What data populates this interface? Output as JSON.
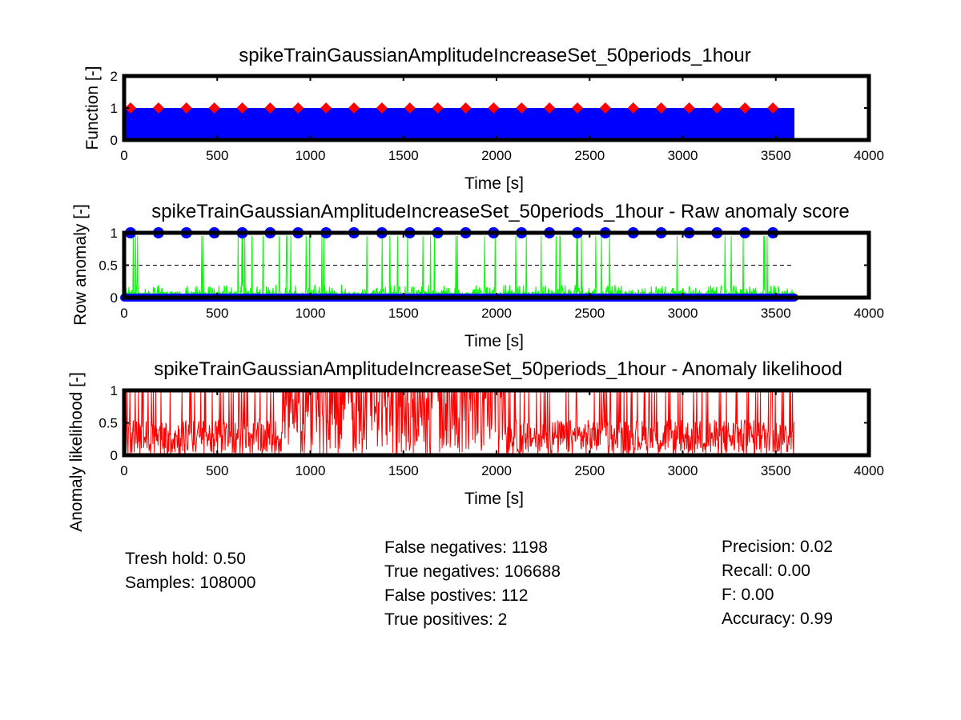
{
  "chart_data": [
    {
      "type": "bar",
      "title": "spikeTrainGaussianAmplitudeIncreaseSet_50periods_1hour",
      "xlabel": "Time [s]",
      "ylabel": "Function [-]",
      "xlim": [
        0,
        4000
      ],
      "ylim": [
        0,
        2
      ],
      "xticks": [
        "0",
        "500",
        "1000",
        "1500",
        "2000",
        "2500",
        "3000",
        "3500",
        "4000"
      ],
      "yticks": [
        "0",
        "1",
        "2"
      ],
      "series": [
        {
          "kind": "filled-area",
          "color": "#0000ff",
          "x": [
            0,
            3600
          ],
          "values": [
            1,
            1
          ]
        },
        {
          "kind": "markers",
          "marker": "diamond",
          "color": "#ff0000",
          "x": [
            0,
            150,
            300,
            450,
            600,
            750,
            900,
            1050,
            1200,
            1350,
            1500,
            1650,
            1800,
            1950,
            2100,
            2250,
            2400,
            2550,
            2700,
            2850,
            3000,
            3150,
            3300,
            3450
          ],
          "values": [
            1,
            1,
            1,
            1,
            1,
            1,
            1,
            1,
            1,
            1,
            1,
            1,
            1,
            1,
            1,
            1,
            1,
            1,
            1,
            1,
            1,
            1,
            1,
            1
          ]
        }
      ]
    },
    {
      "type": "line",
      "title": "spikeTrainGaussianAmplitudeIncreaseSet_50periods_1hour - Raw anomaly score",
      "xlabel": "Time [s]",
      "ylabel": "Row anomaly [-]",
      "xlim": [
        0,
        4000
      ],
      "ylim": [
        0,
        1
      ],
      "xticks": [
        "0",
        "500",
        "1000",
        "1500",
        "2000",
        "2500",
        "3000",
        "3500",
        "4000"
      ],
      "yticks": [
        "0",
        "0.5",
        "1"
      ],
      "threshold": 0.5,
      "series": [
        {
          "kind": "noisy-line",
          "color": "#00ff00",
          "x_range": [
            0,
            3600
          ],
          "baseline_max": 0.2,
          "spike_value": 0.95
        },
        {
          "kind": "markers",
          "marker": "circle",
          "color": "#0000ff",
          "x": [
            0,
            150,
            300,
            450,
            600,
            750,
            900,
            1050,
            1200,
            1350,
            1500,
            1650,
            1800,
            1950,
            2100,
            2250,
            2400,
            2550,
            2700,
            2850,
            3000,
            3150,
            3300,
            3450
          ],
          "values": [
            1,
            1,
            1,
            1,
            1,
            1,
            1,
            1,
            1,
            1,
            1,
            1,
            1,
            1,
            1,
            1,
            1,
            1,
            1,
            1,
            1,
            1,
            1,
            1
          ]
        },
        {
          "kind": "marker-band",
          "color": "#0000ff",
          "x_range": [
            0,
            3600
          ],
          "value": 0
        }
      ]
    },
    {
      "type": "line",
      "title": "spikeTrainGaussianAmplitudeIncreaseSet_50periods_1hour - Anomaly likelihood",
      "xlabel": "Time [s]",
      "ylabel": "Anomaly likelihood [-]",
      "xlim": [
        0,
        4000
      ],
      "ylim": [
        0,
        1
      ],
      "xticks": [
        "0",
        "500",
        "1000",
        "1500",
        "2000",
        "2500",
        "3000",
        "3500",
        "4000"
      ],
      "yticks": [
        "0",
        "0.5",
        "1"
      ],
      "series": [
        {
          "kind": "noisy-line",
          "color": "#ff0000",
          "x_range": [
            0,
            3600
          ],
          "dense_ranges": [
            [
              850,
              2050
            ]
          ],
          "spike_value": 1
        }
      ]
    }
  ],
  "stats": {
    "left": [
      "Tresh hold: 0.50",
      "Samples: 108000"
    ],
    "middle": [
      "False negatives: 1198",
      "True negatives: 106688",
      "False postives: 112",
      "True positives: 2"
    ],
    "right": [
      "Precision: 0.02",
      "Recall: 0.00",
      "F: 0.00",
      "Accuracy: 0.99"
    ]
  }
}
